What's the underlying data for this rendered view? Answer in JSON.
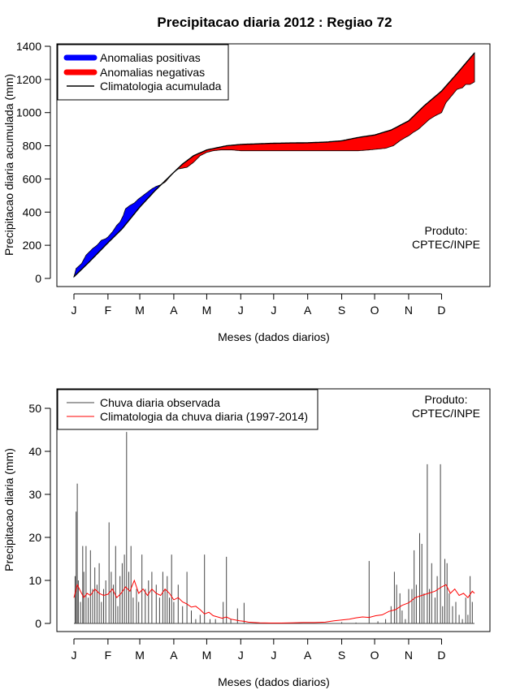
{
  "title": "Precipitacao diaria 2012 : Regiao 72",
  "months": [
    "J",
    "F",
    "M",
    "A",
    "M",
    "J",
    "J",
    "A",
    "S",
    "O",
    "N",
    "D"
  ],
  "colors": {
    "positive": "#0000ff",
    "negative": "#ff0000",
    "observed": "#444444",
    "climatology": "#ff0000"
  },
  "chart_data": [
    {
      "type": "area",
      "title": "Precipitacao diaria 2012 : Regiao 72",
      "xlabel": "Meses (dados diarios)",
      "ylabel": "Precipitacao diaria acumulada (mm)",
      "xlim": [
        1,
        366
      ],
      "ylim": [
        0,
        1400
      ],
      "yticks": [
        0,
        200,
        400,
        600,
        800,
        1000,
        1200,
        1400
      ],
      "xticks_days": [
        1,
        32,
        61,
        92,
        122,
        153,
        183,
        214,
        245,
        275,
        306,
        336
      ],
      "xtick_labels": [
        "J",
        "F",
        "M",
        "A",
        "M",
        "J",
        "J",
        "A",
        "S",
        "O",
        "N",
        "D"
      ],
      "legend": [
        {
          "label": "Anomalias positivas",
          "color": "#0000ff"
        },
        {
          "label": "Anomalias negativas",
          "color": "#ff0000"
        },
        {
          "label": "Climatologia acumulada",
          "color": "#000000"
        }
      ],
      "legend_position": "top-left",
      "note": [
        "Produto:",
        "CPTEC/INPE"
      ],
      "climatology_cumulative": [
        [
          1,
          10
        ],
        [
          15,
          100
        ],
        [
          32,
          215
        ],
        [
          45,
          300
        ],
        [
          61,
          430
        ],
        [
          75,
          530
        ],
        [
          92,
          640
        ],
        [
          100,
          690
        ],
        [
          110,
          740
        ],
        [
          122,
          775
        ],
        [
          140,
          800
        ],
        [
          153,
          808
        ],
        [
          170,
          812
        ],
        [
          183,
          815
        ],
        [
          200,
          817
        ],
        [
          214,
          818
        ],
        [
          230,
          822
        ],
        [
          245,
          830
        ],
        [
          260,
          850
        ],
        [
          275,
          865
        ],
        [
          290,
          895
        ],
        [
          306,
          950
        ],
        [
          320,
          1040
        ],
        [
          336,
          1130
        ],
        [
          350,
          1235
        ],
        [
          366,
          1360
        ]
      ],
      "observed_cumulative": [
        [
          1,
          10
        ],
        [
          3,
          60
        ],
        [
          8,
          90
        ],
        [
          12,
          140
        ],
        [
          15,
          160
        ],
        [
          18,
          180
        ],
        [
          22,
          200
        ],
        [
          26,
          230
        ],
        [
          30,
          240
        ],
        [
          32,
          250
        ],
        [
          36,
          280
        ],
        [
          40,
          320
        ],
        [
          43,
          340
        ],
        [
          46,
          380
        ],
        [
          48,
          420
        ],
        [
          52,
          440
        ],
        [
          56,
          455
        ],
        [
          60,
          480
        ],
        [
          64,
          500
        ],
        [
          68,
          520
        ],
        [
          72,
          540
        ],
        [
          76,
          555
        ],
        [
          80,
          565
        ],
        [
          84,
          580
        ],
        [
          88,
          610
        ],
        [
          92,
          640
        ],
        [
          96,
          660
        ],
        [
          100,
          665
        ],
        [
          104,
          670
        ],
        [
          110,
          700
        ],
        [
          116,
          740
        ],
        [
          122,
          760
        ],
        [
          128,
          770
        ],
        [
          135,
          775
        ],
        [
          145,
          775
        ],
        [
          153,
          770
        ],
        [
          170,
          770
        ],
        [
          183,
          770
        ],
        [
          200,
          770
        ],
        [
          214,
          770
        ],
        [
          230,
          770
        ],
        [
          245,
          770
        ],
        [
          260,
          770
        ],
        [
          270,
          775
        ],
        [
          285,
          785
        ],
        [
          292,
          800
        ],
        [
          298,
          830
        ],
        [
          303,
          850
        ],
        [
          306,
          860
        ],
        [
          310,
          880
        ],
        [
          315,
          900
        ],
        [
          320,
          930
        ],
        [
          325,
          960
        ],
        [
          330,
          980
        ],
        [
          336,
          1000
        ],
        [
          340,
          1060
        ],
        [
          345,
          1100
        ],
        [
          350,
          1140
        ],
        [
          355,
          1150
        ],
        [
          358,
          1170
        ],
        [
          362,
          1170
        ],
        [
          366,
          1185
        ]
      ]
    },
    {
      "type": "line",
      "xlabel": "Meses (dados diarios)",
      "ylabel": "Precipitacao diaria (mm)",
      "xlim": [
        1,
        366
      ],
      "ylim": [
        0,
        50
      ],
      "yticks": [
        0,
        10,
        20,
        30,
        40,
        50
      ],
      "xticks_days": [
        1,
        32,
        61,
        92,
        122,
        153,
        183,
        214,
        245,
        275,
        306,
        336
      ],
      "xtick_labels": [
        "J",
        "F",
        "M",
        "A",
        "M",
        "J",
        "J",
        "A",
        "S",
        "O",
        "N",
        "D"
      ],
      "legend": [
        {
          "label": "Chuva diaria observada",
          "color": "#444444"
        },
        {
          "label": "Climatologia da chuva diaria (1997-2014)",
          "color": "#ff0000"
        }
      ],
      "legend_position": "top-left",
      "note": [
        "Produto:",
        "CPTEC/INPE"
      ],
      "observed_spikes": [
        [
          2,
          11
        ],
        [
          3,
          26
        ],
        [
          4,
          32.5
        ],
        [
          5,
          10
        ],
        [
          7,
          5
        ],
        [
          9,
          18
        ],
        [
          10,
          12
        ],
        [
          12,
          18
        ],
        [
          14,
          6
        ],
        [
          16,
          17
        ],
        [
          18,
          8
        ],
        [
          20,
          13
        ],
        [
          22,
          9
        ],
        [
          24,
          14
        ],
        [
          26,
          5
        ],
        [
          28,
          8
        ],
        [
          30,
          10
        ],
        [
          33,
          23.5
        ],
        [
          35,
          12
        ],
        [
          37,
          9
        ],
        [
          39,
          18
        ],
        [
          41,
          4
        ],
        [
          43,
          11
        ],
        [
          45,
          14
        ],
        [
          47,
          16
        ],
        [
          49,
          44.5
        ],
        [
          51,
          12
        ],
        [
          53,
          18
        ],
        [
          55,
          6
        ],
        [
          58,
          8
        ],
        [
          60,
          5
        ],
        [
          63,
          16
        ],
        [
          66,
          8
        ],
        [
          69,
          10
        ],
        [
          72,
          12
        ],
        [
          76,
          9
        ],
        [
          79,
          6
        ],
        [
          82,
          12
        ],
        [
          84,
          8
        ],
        [
          86,
          11
        ],
        [
          88,
          6
        ],
        [
          90,
          16
        ],
        [
          92,
          5
        ],
        [
          96,
          9
        ],
        [
          100,
          4
        ],
        [
          104,
          12
        ],
        [
          108,
          3
        ],
        [
          112,
          1
        ],
        [
          116,
          2
        ],
        [
          120,
          16
        ],
        [
          125,
          1
        ],
        [
          130,
          1
        ],
        [
          137,
          5
        ],
        [
          140,
          15.5
        ],
        [
          144,
          1
        ],
        [
          150,
          3.5
        ],
        [
          156,
          4.8
        ],
        [
          170,
          0.2
        ],
        [
          180,
          0.1
        ],
        [
          230,
          0.1
        ],
        [
          245,
          0.3
        ],
        [
          258,
          0.2
        ],
        [
          270,
          14.5
        ],
        [
          278,
          0.5
        ],
        [
          285,
          1
        ],
        [
          290,
          4
        ],
        [
          293,
          12
        ],
        [
          295,
          9
        ],
        [
          298,
          7
        ],
        [
          300,
          3
        ],
        [
          303,
          1
        ],
        [
          306,
          8
        ],
        [
          309,
          8
        ],
        [
          311,
          17
        ],
        [
          313,
          9
        ],
        [
          316,
          21
        ],
        [
          318,
          18.5
        ],
        [
          320,
          7
        ],
        [
          323,
          37
        ],
        [
          325,
          8
        ],
        [
          327,
          14
        ],
        [
          330,
          6
        ],
        [
          332,
          11
        ],
        [
          335,
          37
        ],
        [
          337,
          4
        ],
        [
          339,
          15
        ],
        [
          341,
          14
        ],
        [
          343,
          7
        ],
        [
          346,
          4
        ],
        [
          349,
          5
        ],
        [
          352,
          2
        ],
        [
          355,
          1
        ],
        [
          358,
          6
        ],
        [
          360,
          2
        ],
        [
          362,
          11
        ],
        [
          364,
          5
        ]
      ],
      "climatology_daily": [
        [
          1,
          6
        ],
        [
          4,
          9
        ],
        [
          7,
          7.5
        ],
        [
          10,
          6
        ],
        [
          13,
          7
        ],
        [
          16,
          6.5
        ],
        [
          20,
          8
        ],
        [
          24,
          7
        ],
        [
          28,
          6.5
        ],
        [
          32,
          6.8
        ],
        [
          36,
          8
        ],
        [
          40,
          6
        ],
        [
          44,
          7
        ],
        [
          48,
          8.5
        ],
        [
          52,
          7.5
        ],
        [
          56,
          10
        ],
        [
          60,
          7
        ],
        [
          64,
          8
        ],
        [
          68,
          6.5
        ],
        [
          72,
          8
        ],
        [
          76,
          7
        ],
        [
          80,
          6.5
        ],
        [
          84,
          8
        ],
        [
          88,
          7
        ],
        [
          92,
          5.5
        ],
        [
          96,
          6
        ],
        [
          100,
          5
        ],
        [
          104,
          4.5
        ],
        [
          108,
          3.8
        ],
        [
          112,
          4
        ],
        [
          116,
          3.2
        ],
        [
          120,
          2.2
        ],
        [
          124,
          2.6
        ],
        [
          128,
          1.8
        ],
        [
          132,
          1.5
        ],
        [
          136,
          1.2
        ],
        [
          140,
          1.5
        ],
        [
          144,
          1
        ],
        [
          148,
          0.8
        ],
        [
          152,
          0.6
        ],
        [
          156,
          0.5
        ],
        [
          160,
          0.3
        ],
        [
          170,
          0.15
        ],
        [
          180,
          0.1
        ],
        [
          190,
          0.1
        ],
        [
          200,
          0.15
        ],
        [
          210,
          0.2
        ],
        [
          220,
          0.2
        ],
        [
          230,
          0.3
        ],
        [
          238,
          0.6
        ],
        [
          245,
          0.8
        ],
        [
          252,
          1
        ],
        [
          258,
          1.3
        ],
        [
          264,
          1.5
        ],
        [
          270,
          1.4
        ],
        [
          276,
          1.8
        ],
        [
          282,
          2
        ],
        [
          288,
          2.8
        ],
        [
          294,
          3.2
        ],
        [
          300,
          4.2
        ],
        [
          306,
          4.8
        ],
        [
          312,
          6
        ],
        [
          318,
          6.5
        ],
        [
          324,
          7
        ],
        [
          330,
          7.5
        ],
        [
          336,
          8.5
        ],
        [
          340,
          9
        ],
        [
          344,
          7
        ],
        [
          348,
          8
        ],
        [
          352,
          6.5
        ],
        [
          356,
          7
        ],
        [
          360,
          6
        ],
        [
          364,
          7.5
        ],
        [
          366,
          7
        ]
      ]
    }
  ]
}
